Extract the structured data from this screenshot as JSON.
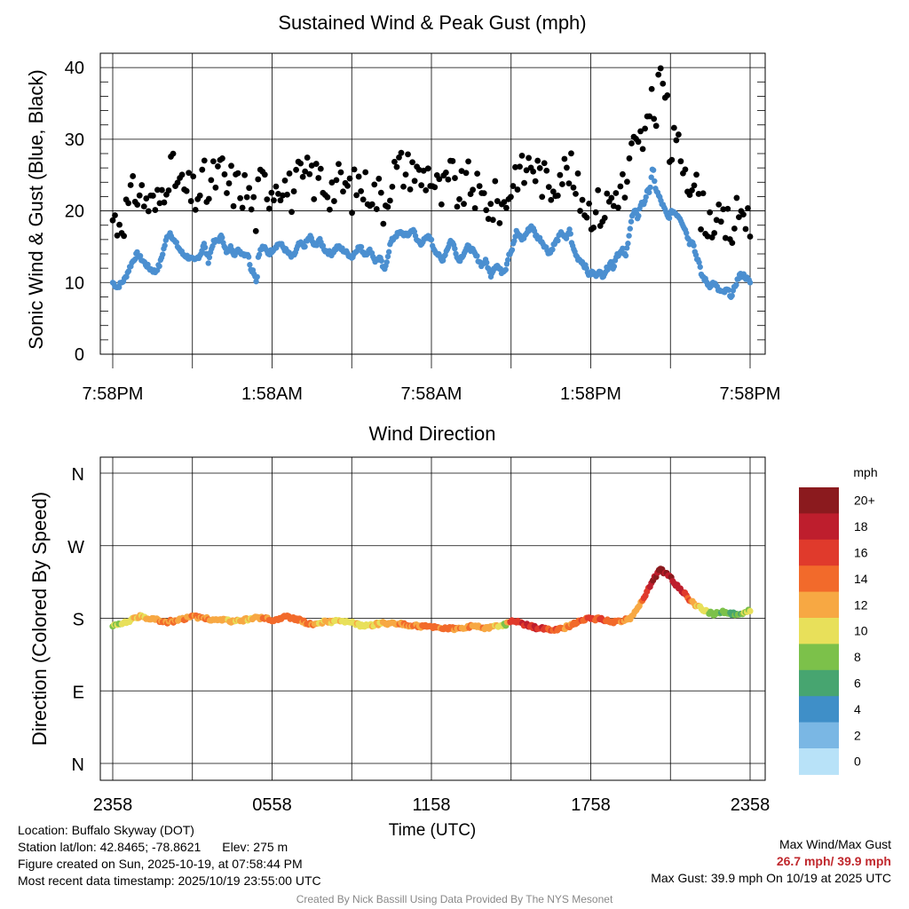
{
  "chart_data": [
    {
      "type": "scatter",
      "title": "Sustained Wind & Peak Gust (mph)",
      "ylabel": "Sonic Wind & Gust (Blue, Black)",
      "xlabel": "",
      "ylim": [
        0,
        42
      ],
      "yticks": [
        0,
        10,
        20,
        30,
        40
      ],
      "xticks": [
        "7:58PM",
        "1:58AM",
        "7:58AM",
        "1:58PM",
        "7:58PM"
      ],
      "x_hours_range": [
        0,
        24
      ],
      "sustained_keypoints": [
        [
          0,
          10
        ],
        [
          0.3,
          9.3
        ],
        [
          0.8,
          10.5
        ],
        [
          1.2,
          12.5
        ],
        [
          1.6,
          14
        ],
        [
          2,
          13
        ],
        [
          2.4,
          12
        ],
        [
          2.8,
          11.5
        ],
        [
          3.1,
          12.5
        ],
        [
          3.4,
          15
        ],
        [
          3.6,
          16.5
        ],
        [
          3.8,
          17
        ],
        [
          4,
          16
        ],
        [
          4.3,
          15
        ],
        [
          4.6,
          14
        ],
        [
          5,
          13.5
        ],
        [
          5.4,
          13
        ],
        [
          5.8,
          14
        ],
        [
          6,
          15.5
        ],
        [
          6.3,
          13
        ],
        [
          6.6,
          15.5
        ],
        [
          7,
          16
        ],
        [
          7.2,
          16.5
        ],
        [
          7.5,
          14
        ],
        [
          7.8,
          15
        ],
        [
          8,
          14
        ],
        [
          8.3,
          14.5
        ],
        [
          8.6,
          14
        ],
        [
          8.9,
          14
        ],
        [
          9.1,
          12
        ],
        [
          9.3,
          11.5
        ],
        [
          9.5,
          10
        ],
        [
          9.6,
          14
        ],
        [
          9.9,
          15
        ],
        [
          10.3,
          14
        ],
        [
          10.7,
          15
        ],
        [
          11,
          15.5
        ],
        [
          11.4,
          14.5
        ],
        [
          11.8,
          13.5
        ],
        [
          12,
          14
        ],
        [
          12.3,
          15.5
        ],
        [
          12.6,
          15
        ],
        [
          13,
          16.5
        ],
        [
          13.3,
          15
        ],
        [
          13.6,
          16
        ],
        [
          14,
          14.5
        ],
        [
          14.4,
          14
        ],
        [
          14.8,
          15
        ],
        [
          15.2,
          14.5
        ],
        [
          15.5,
          14
        ],
        [
          15.8,
          13.5
        ],
        [
          16,
          14.5
        ],
        [
          16.3,
          15
        ],
        [
          16.6,
          14
        ],
        [
          17,
          14.5
        ],
        [
          17.3,
          13
        ],
        [
          17.6,
          13.5
        ],
        [
          17.9,
          11.5
        ],
        [
          18,
          12.5
        ],
        [
          18.3,
          15.5
        ],
        [
          18.6,
          16.5
        ],
        [
          19,
          17
        ],
        [
          19.4,
          16.5
        ],
        [
          19.8,
          17.5
        ],
        [
          20,
          16
        ],
        [
          20.3,
          15.5
        ],
        [
          20.6,
          16
        ],
        [
          20.9,
          16.5
        ],
        [
          21.1,
          15
        ],
        [
          21.4,
          14
        ],
        [
          21.7,
          13
        ],
        [
          22,
          14.5
        ],
        [
          22.3,
          16
        ],
        [
          22.5,
          15
        ],
        [
          22.8,
          13
        ],
        [
          23.1,
          14
        ],
        [
          23.4,
          15
        ],
        [
          23.7,
          14.5
        ],
        [
          24,
          13.5
        ],
        [
          24.3,
          12.5
        ],
        [
          24.6,
          13
        ],
        [
          24.9,
          11
        ],
        [
          25.1,
          12
        ],
        [
          25.3,
          12.5
        ],
        [
          25.6,
          11.5
        ],
        [
          25.9,
          12
        ],
        [
          26.1,
          14
        ],
        [
          26.3,
          14.5
        ],
        [
          26.6,
          17
        ],
        [
          26.8,
          16.5
        ],
        [
          27,
          16
        ],
        [
          27.3,
          17
        ],
        [
          27.6,
          18
        ],
        [
          27.9,
          16.5
        ],
        [
          28.2,
          16
        ],
        [
          28.5,
          15
        ],
        [
          28.8,
          14
        ],
        [
          29,
          15
        ],
        [
          29.3,
          16
        ],
        [
          29.6,
          17
        ],
        [
          29.9,
          16
        ],
        [
          30.1,
          17.5
        ],
        [
          30.3,
          15
        ],
        [
          30.6,
          13.5
        ],
        [
          30.9,
          13
        ],
        [
          31.2,
          12
        ],
        [
          31.4,
          11
        ],
        [
          31.6,
          11.5
        ],
        [
          31.8,
          11
        ],
        [
          32,
          11.5
        ],
        [
          32.3,
          11
        ],
        [
          32.6,
          12
        ],
        [
          32.8,
          13
        ],
        [
          33,
          12
        ],
        [
          33.2,
          14
        ],
        [
          33.4,
          14
        ],
        [
          33.6,
          14.5
        ],
        [
          33.8,
          13.5
        ],
        [
          34,
          16.5
        ],
        [
          34.2,
          19
        ],
        [
          34.4,
          20
        ],
        [
          34.6,
          19
        ],
        [
          34.8,
          21
        ],
        [
          35,
          21
        ],
        [
          35.2,
          22.5
        ],
        [
          35.4,
          23
        ],
        [
          35.5,
          25
        ],
        [
          35.6,
          26
        ],
        [
          35.7,
          24
        ],
        [
          35.8,
          23
        ],
        [
          36,
          22
        ],
        [
          36.3,
          20.5
        ],
        [
          36.6,
          19
        ],
        [
          36.9,
          20
        ],
        [
          37.2,
          19.5
        ],
        [
          37.4,
          19
        ],
        [
          37.6,
          18
        ],
        [
          37.8,
          17
        ],
        [
          38,
          15.5
        ],
        [
          38.2,
          16
        ],
        [
          38.4,
          14
        ],
        [
          38.6,
          13
        ],
        [
          38.8,
          11
        ],
        [
          39,
          10.5
        ],
        [
          39.3,
          9.5
        ],
        [
          39.6,
          10
        ],
        [
          39.9,
          9
        ],
        [
          40.2,
          8.5
        ],
        [
          40.5,
          9
        ],
        [
          40.8,
          8
        ],
        [
          41,
          9.5
        ],
        [
          41.3,
          11
        ],
        [
          41.6,
          11
        ],
        [
          42,
          10
        ]
      ],
      "gust_note": "black dots ~ sustained + 6 to 11 mph; peak 39.9",
      "series": [
        {
          "name": "Sustained Wind",
          "color": "#4b8fd0"
        },
        {
          "name": "Peak Gust",
          "color": "#000000"
        }
      ]
    },
    {
      "type": "scatter",
      "title": "Wind Direction",
      "ylabel": "Direction (Colored By Speed)",
      "xlabel": "Time (UTC)",
      "yticks": [
        "N",
        "E",
        "S",
        "W",
        "N"
      ],
      "xticks": [
        "2358",
        "0558",
        "1158",
        "1758",
        "2358"
      ],
      "direction_keypoints": [
        [
          0,
          170
        ],
        [
          0.5,
          175
        ],
        [
          1,
          182
        ],
        [
          1.5,
          180
        ],
        [
          2,
          175
        ],
        [
          2.5,
          178
        ],
        [
          3,
          182
        ],
        [
          3.5,
          180
        ],
        [
          4,
          178
        ],
        [
          4.5,
          176
        ],
        [
          5,
          178
        ],
        [
          5.5,
          181
        ],
        [
          6,
          178
        ],
        [
          6.5,
          182
        ],
        [
          7,
          178
        ],
        [
          7.5,
          172
        ],
        [
          8,
          176
        ],
        [
          8.5,
          176
        ],
        [
          9,
          174
        ],
        [
          9.5,
          170
        ],
        [
          10,
          173
        ],
        [
          10.5,
          174
        ],
        [
          11,
          172
        ],
        [
          11.5,
          170
        ],
        [
          12,
          170
        ],
        [
          12.5,
          168
        ],
        [
          13,
          167
        ],
        [
          13.5,
          170
        ],
        [
          14,
          168
        ],
        [
          14.5,
          170
        ],
        [
          14.8,
          172
        ],
        [
          15,
          178
        ],
        [
          15.5,
          172
        ],
        [
          16,
          168
        ],
        [
          16.5,
          166
        ],
        [
          17,
          168
        ],
        [
          17.5,
          175
        ],
        [
          18,
          180
        ],
        [
          18.5,
          178
        ],
        [
          19,
          175
        ],
        [
          19.5,
          180
        ],
        [
          20,
          205
        ],
        [
          20.3,
          225
        ],
        [
          20.6,
          240
        ],
        [
          20.9,
          235
        ],
        [
          21.2,
          222
        ],
        [
          21.5,
          212
        ],
        [
          21.8,
          200
        ],
        [
          22,
          195
        ],
        [
          22.3,
          190
        ],
        [
          22.6,
          185
        ],
        [
          23,
          188
        ],
        [
          23.5,
          185
        ],
        [
          24,
          190
        ]
      ],
      "speed_keypoints": [
        [
          0,
          9
        ],
        [
          1,
          12
        ],
        [
          2,
          14
        ],
        [
          3,
          14
        ],
        [
          4,
          13
        ],
        [
          5,
          12
        ],
        [
          6,
          15
        ],
        [
          7,
          15
        ],
        [
          8,
          12
        ],
        [
          9,
          11
        ],
        [
          10,
          12
        ],
        [
          11,
          14
        ],
        [
          12,
          15
        ],
        [
          13,
          14
        ],
        [
          14,
          14
        ],
        [
          14.8,
          10
        ],
        [
          15,
          17
        ],
        [
          16,
          18
        ],
        [
          17,
          14
        ],
        [
          18,
          16
        ],
        [
          19,
          15
        ],
        [
          19.8,
          12
        ],
        [
          20,
          17
        ],
        [
          20.6,
          21
        ],
        [
          21,
          20
        ],
        [
          21.5,
          18
        ],
        [
          22,
          12
        ],
        [
          22.5,
          10
        ],
        [
          23,
          8
        ],
        [
          23.5,
          8
        ],
        [
          24,
          10
        ]
      ],
      "colorbar": {
        "title": "mph",
        "labels": [
          "20+",
          "18",
          "16",
          "14",
          "12",
          "10",
          "8",
          "6",
          "4",
          "2",
          "0"
        ],
        "colors": [
          "#8b1a1e",
          "#be1e2d",
          "#e03a2c",
          "#f26a2b",
          "#f7a843",
          "#e8e05a",
          "#7cc14a",
          "#47a570",
          "#3f8fc8",
          "#7ab7e4",
          "#b8e2f8"
        ]
      }
    }
  ],
  "footer": {
    "location": "Location: Buffalo Skyway (DOT)",
    "latlon": "Station lat/lon: 42.8465; -78.8621",
    "elev": "Elev: 275 m",
    "created": "Figure created on Sun, 2025-10-19, at 07:58:44 PM",
    "recent": "Most recent data timestamp: 2025/10/19 23:55:00 UTC",
    "max_title": "Max Wind/Max Gust",
    "max_values": "26.7 mph/ 39.9 mph",
    "max_gust_line": "Max Gust: 39.9 mph On 10/19 at 2025 UTC",
    "credit": "Created By Nick Bassill Using Data Provided By The NYS Mesonet"
  }
}
